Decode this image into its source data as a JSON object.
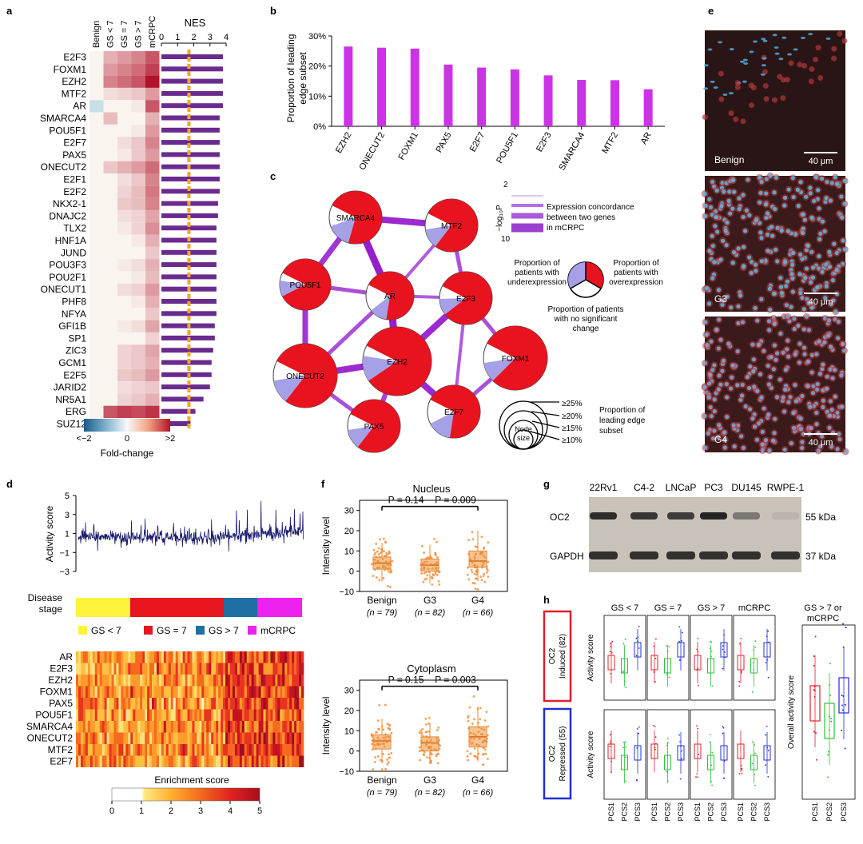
{
  "panels": {
    "a": "a",
    "b": "b",
    "c": "c",
    "d": "d",
    "e": "e",
    "f": "f",
    "g": "g",
    "h": "h"
  },
  "a": {
    "columns": [
      "Benign",
      "GS < 7",
      "GS = 7",
      "GS > 7",
      "mCRPC"
    ],
    "nes_title": "NES",
    "nes_ticks": [
      "0",
      "1",
      "2",
      "3",
      "4"
    ],
    "nes_threshold": 1.7,
    "genes": [
      "E2F3",
      "FOXM1",
      "EZH2",
      "MTF2",
      "AR",
      "SMARCA4",
      "POU5F1",
      "E2F7",
      "PAX5",
      "ONECUT2",
      "E2F1",
      "E2F2",
      "NKX2-1",
      "DNAJC2",
      "TLX2",
      "HNF1A",
      "JUND",
      "POU3F3",
      "POU2F1",
      "ONECUT1",
      "PHF8",
      "NFYA",
      "GFI1B",
      "SP1",
      "ZIC3",
      "GCM1",
      "E2F5",
      "JARID2",
      "NR5A1",
      "ERG",
      "SUZ12"
    ],
    "nes": [
      3.8,
      3.8,
      3.8,
      3.8,
      3.8,
      3.6,
      3.6,
      3.6,
      3.6,
      3.6,
      3.6,
      3.6,
      3.5,
      3.5,
      3.4,
      3.4,
      3.4,
      3.4,
      3.4,
      3.4,
      3.4,
      3.4,
      3.3,
      3.3,
      3.2,
      3.1,
      3.1,
      3.0,
      2.6,
      2.1,
      1.8
    ],
    "heat": [
      [
        0,
        0.3,
        0.4,
        0.5,
        0.7
      ],
      [
        0,
        0.4,
        0.5,
        0.6,
        0.8
      ],
      [
        0,
        0.5,
        0.6,
        0.7,
        1.0
      ],
      [
        0,
        0.1,
        0.15,
        0.2,
        0.4
      ],
      [
        -0.4,
        0,
        0,
        0.05,
        0.7
      ],
      [
        0,
        0.25,
        0,
        0,
        0.3
      ],
      [
        0,
        0,
        0,
        0.05,
        0.4
      ],
      [
        0,
        0,
        0.1,
        0.2,
        0.5
      ],
      [
        0,
        0,
        0.05,
        0.2,
        0.4
      ],
      [
        0,
        0.2,
        0.3,
        0.4,
        0.6
      ],
      [
        0,
        0,
        0.1,
        0.2,
        0.5
      ],
      [
        0,
        0,
        0.15,
        0.25,
        0.55
      ],
      [
        0,
        0,
        0.2,
        0.25,
        0.5
      ],
      [
        0,
        0,
        0.1,
        0.15,
        0.35
      ],
      [
        0,
        0,
        0.05,
        0.15,
        0.45
      ],
      [
        0,
        0,
        0,
        0.05,
        0.3
      ],
      [
        0,
        0,
        0,
        0,
        0.2
      ],
      [
        0,
        0,
        0.05,
        0.1,
        0.3
      ],
      [
        0,
        0,
        0,
        0.05,
        0.25
      ],
      [
        0,
        0,
        0.1,
        0.15,
        0.4
      ],
      [
        0,
        0,
        0,
        0.05,
        0.3
      ],
      [
        0,
        0,
        0,
        0,
        0.2
      ],
      [
        0,
        0,
        0.05,
        0.1,
        0.35
      ],
      [
        0,
        0,
        0,
        0,
        0.15
      ],
      [
        0,
        0,
        0.15,
        0.2,
        0.35
      ],
      [
        0,
        0,
        0.15,
        0.2,
        0.3
      ],
      [
        0,
        0,
        0.2,
        0.25,
        0.4
      ],
      [
        0,
        0,
        0.1,
        0.15,
        0.2
      ],
      [
        0,
        0,
        0.15,
        0.2,
        0.3
      ],
      [
        0,
        0.7,
        0.8,
        0.75,
        0.85
      ],
      [
        0,
        0,
        0,
        0,
        0.05
      ]
    ],
    "scale_ticks": [
      "<−2",
      "0",
      ">2"
    ],
    "scale_label": "Fold-change"
  },
  "b": {
    "chart_data": {
      "type": "bar",
      "categories": [
        "EZH2",
        "ONECUT2",
        "FOXM1",
        "PAX5",
        "E2F7",
        "POU5F1",
        "E2F3",
        "SMARCA4",
        "MTF2",
        "AR"
      ],
      "values": [
        26.5,
        26.1,
        25.8,
        20.5,
        19.5,
        18.9,
        16.9,
        15.4,
        15.3,
        12.3
      ],
      "ylabel": "Proportion of leading edge subset",
      "ylim": [
        0,
        30
      ],
      "yticks": [
        "0%",
        "10%",
        "20%",
        "30%"
      ],
      "color": "#cc33e6"
    }
  },
  "c": {
    "nodes": [
      "SMARCA4",
      "MTF2",
      "POU5F1",
      "AR",
      "E2F3",
      "ONECUT2",
      "EZH2",
      "FOXM1",
      "PAX5",
      "E2F7"
    ],
    "legend_p_title": "−log₁₀P",
    "legend_p_top": "2",
    "legend_p_bottom": "10",
    "legend_conc": [
      "Expression concordance",
      "between two genes",
      "in mCRPC"
    ],
    "legend_under": [
      "Proportion of",
      "patients with",
      "underexpression"
    ],
    "legend_over": [
      "Proportion of",
      "patients with",
      "overexpression"
    ],
    "legend_none": [
      "Proportion of patients",
      "with no significant",
      "change"
    ],
    "size_labels": [
      "≥25%",
      "≥20%",
      "≥15%",
      "≥10%"
    ],
    "node_size": [
      "Node",
      "size"
    ],
    "size_title": [
      "Proportion of",
      "leading edge",
      "subset"
    ]
  },
  "d": {
    "ylabel": "Activity score",
    "yticks": [
      "5",
      "3",
      "1",
      "−1",
      "−3"
    ],
    "stage_label": [
      "Disease",
      "stage"
    ],
    "stages": [
      {
        "label": "GS < 7",
        "color": "#fff23a"
      },
      {
        "label": "GS = 7",
        "color": "#e8161e"
      },
      {
        "label": "GS > 7",
        "color": "#1f6fa0"
      },
      {
        "label": "mCRPC",
        "color": "#ee22ee"
      }
    ],
    "heat_genes": [
      "AR",
      "E2F3",
      "EZH2",
      "FOXM1",
      "PAX5",
      "POU5F1",
      "SMARCA4",
      "ONECUT2",
      "MTF2",
      "E2F7"
    ],
    "enrich_title": "Enrichment score",
    "enrich_ticks": [
      "0",
      "1",
      "2",
      "3",
      "4",
      "5"
    ]
  },
  "e": {
    "labels": [
      "Benign",
      "G3",
      "G4"
    ],
    "scale": "40 μm"
  },
  "f": {
    "plots": [
      {
        "title": "Nucleus",
        "p1": "P = 0.14",
        "p2": "P = 0.009"
      },
      {
        "title": "Cytoplasm",
        "p1": "P = 0.15",
        "p2": "P = 0.003"
      }
    ],
    "ylabel": "Intensity level",
    "yticks": [
      "30",
      "20",
      "10",
      "0",
      "−10"
    ],
    "groups": [
      "Benign",
      "G3",
      "G4"
    ],
    "ns": [
      "(n = 79)",
      "(n = 82)",
      "(n = 66)"
    ]
  },
  "g": {
    "lanes": [
      "22Rv1",
      "C4-2",
      "LNCaP",
      "PC3",
      "DU145",
      "RWPE-1"
    ],
    "rows": [
      "OC2",
      "GAPDH"
    ],
    "kda": [
      "55 kDa",
      "37 kDa"
    ]
  },
  "h": {
    "groups": [
      "GS < 7",
      "GS = 7",
      "GS > 7",
      "mCRPC"
    ],
    "rows": [
      {
        "title": "OC2",
        "sub": "Induced (82)",
        "color": "#e0202a"
      },
      {
        "title": "OC2",
        "sub": "Repressed (55)",
        "color": "#2030d0"
      }
    ],
    "ylabel": "Activity score",
    "right_title": [
      "GS > 7 or",
      "mCRPC"
    ],
    "right_ylabel": "Overall activity score",
    "pcs": [
      "PCS1",
      "PCS2",
      "PCS3"
    ]
  }
}
